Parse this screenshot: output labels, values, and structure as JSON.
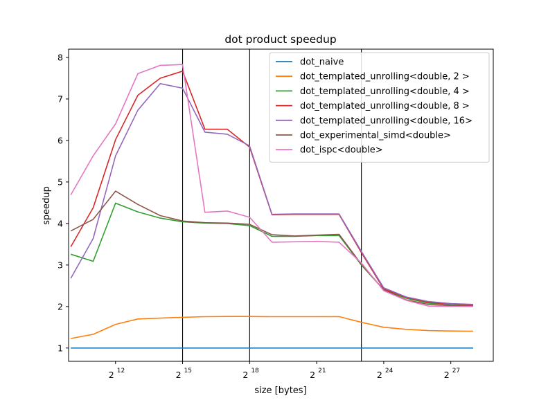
{
  "chart_data": {
    "type": "line",
    "title": "dot product speedup",
    "xlabel": "size [bytes]",
    "ylabel": "speedup",
    "x_scale": "log2",
    "x_tick_exponents": [
      12,
      15,
      18,
      21,
      24,
      27
    ],
    "x_tick_labels": [
      "2",
      "2",
      "2",
      "2",
      "2",
      "2"
    ],
    "x_tick_superscripts": [
      "12",
      "15",
      "18",
      "21",
      "24",
      "27"
    ],
    "xlim_exp": [
      9.9,
      28.9
    ],
    "ylim": [
      0.68,
      8.2
    ],
    "y_ticks": [
      1,
      2,
      3,
      4,
      5,
      6,
      7,
      8
    ],
    "y_tick_labels": [
      "1",
      "2",
      "3",
      "4",
      "5",
      "6",
      "7",
      "8"
    ],
    "vlines_exp": [
      15,
      18,
      23
    ],
    "legend_position": "top-right",
    "x_exp": [
      10,
      11,
      12,
      13,
      14,
      15,
      16,
      17,
      18,
      19,
      20,
      21,
      22,
      23,
      24,
      25,
      26,
      27,
      28
    ],
    "series": [
      {
        "name": "dot_naive",
        "color": "#1f77b4",
        "values": [
          1,
          1,
          1,
          1,
          1,
          1,
          1,
          1,
          1,
          1,
          1,
          1,
          1,
          1,
          1,
          1,
          1,
          1,
          1
        ]
      },
      {
        "name": "dot_templated_unrolling<double, 2 >",
        "color": "#ff7f0e",
        "values": [
          1.23,
          1.33,
          1.57,
          1.7,
          1.72,
          1.74,
          1.755,
          1.76,
          1.76,
          1.755,
          1.755,
          1.755,
          1.757,
          1.62,
          1.5,
          1.45,
          1.42,
          1.41,
          1.405
        ]
      },
      {
        "name": "dot_templated_unrolling<double, 4 >",
        "color": "#2ca02c",
        "values": [
          3.26,
          3.09,
          4.49,
          4.28,
          4.13,
          4.04,
          4.01,
          4.0,
          3.95,
          3.69,
          3.69,
          3.71,
          3.71,
          3.0,
          2.4,
          2.2,
          2.08,
          2.05,
          2.03
        ]
      },
      {
        "name": "dot_templated_unrolling<double, 8 >",
        "color": "#d62728",
        "values": [
          3.44,
          4.38,
          6.02,
          7.09,
          7.5,
          7.67,
          6.27,
          6.27,
          5.84,
          4.21,
          4.22,
          4.22,
          4.22,
          3.3,
          2.42,
          2.22,
          2.1,
          2.06,
          2.04
        ]
      },
      {
        "name": "dot_templated_unrolling<double, 16>",
        "color": "#9467bd",
        "values": [
          2.68,
          3.64,
          5.63,
          6.73,
          7.37,
          7.26,
          6.2,
          6.15,
          5.87,
          4.22,
          4.23,
          4.23,
          4.23,
          3.33,
          2.45,
          2.23,
          2.12,
          2.07,
          2.05
        ]
      },
      {
        "name": "dot_experimental_simd<double>",
        "color": "#8c564b",
        "values": [
          3.82,
          4.1,
          4.78,
          4.46,
          4.19,
          4.06,
          4.02,
          4.01,
          3.98,
          3.73,
          3.7,
          3.72,
          3.74,
          3.02,
          2.4,
          2.16,
          2.05,
          2.02,
          2.01
        ]
      },
      {
        "name": "dot_ispc<double>",
        "color": "#e377c2",
        "values": [
          4.69,
          5.63,
          6.4,
          7.61,
          7.81,
          7.83,
          4.27,
          4.3,
          4.15,
          3.55,
          3.56,
          3.57,
          3.55,
          3.05,
          2.38,
          2.15,
          2.01,
          2.0,
          2.0
        ]
      }
    ]
  }
}
